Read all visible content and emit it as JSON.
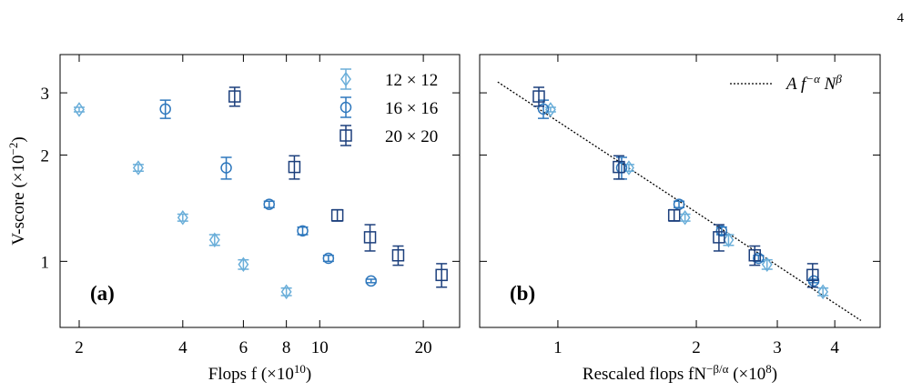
{
  "page_number": "4",
  "chart_data": [
    {
      "type": "scatter",
      "panel_label": "(a)",
      "xlabel": [
        "Flops f (×10",
        "10",
        ")"
      ],
      "ylabel": [
        "V-score (×10",
        "−2",
        ")"
      ],
      "log_x": true,
      "log_y": true,
      "xlim": [
        1.76,
        25.5
      ],
      "ylim": [
        0.65,
        3.85
      ],
      "xticks": [
        2,
        4,
        6,
        8,
        10,
        20
      ],
      "yticks": [
        1,
        2,
        3
      ],
      "legend": "upper right",
      "series": [
        {
          "name": "12 × 12",
          "color": "#6aaed9",
          "marker": "diamond",
          "x": [
            2,
            2.97,
            4,
            4.95,
            6,
            8
          ],
          "values": [
            2.69,
            1.84,
            1.33,
            1.15,
            0.98,
            0.82
          ],
          "errors": [
            0.04,
            0.04,
            0.03,
            0.04,
            0.03,
            0.02
          ]
        },
        {
          "name": "16 × 16",
          "color": "#2f78bd",
          "marker": "circle",
          "x": [
            3.56,
            5.35,
            7.13,
            8.92,
            10.6,
            14.1
          ],
          "values": [
            2.7,
            1.84,
            1.45,
            1.22,
            1.02,
            0.88
          ],
          "errors": [
            0.16,
            0.13,
            0.03,
            0.03,
            0.02,
            0.01
          ]
        },
        {
          "name": "20 × 20",
          "color": "#1c3f7c",
          "marker": "square",
          "x": [
            5.66,
            8.44,
            11.25,
            14,
            16.9,
            22.6
          ],
          "values": [
            2.93,
            1.85,
            1.35,
            1.17,
            1.04,
            0.915
          ],
          "errors": [
            0.18,
            0.14,
            0.05,
            0.1,
            0.065,
            0.07
          ]
        }
      ]
    },
    {
      "type": "scatter",
      "panel_label": "(b)",
      "xlabel": [
        "Rescaled flops fN",
        "−β/α",
        " (×10",
        "8",
        ")"
      ],
      "log_x": true,
      "log_y": true,
      "xlim": [
        0.676,
        5.02
      ],
      "ylim": [
        0.65,
        3.85
      ],
      "xticks": [
        1,
        2,
        3,
        4
      ],
      "yticks": [
        1,
        2,
        3
      ],
      "legend": "upper right",
      "fit": {
        "name": [
          "A f",
          "−α",
          " N",
          "β"
        ],
        "color": "#000000",
        "x": [
          0.74,
          4.56
        ],
        "values": [
          3.22,
          0.68
        ]
      },
      "series": [
        {
          "color": "#6aaed9",
          "marker": "diamond",
          "x": [
            0.964,
            1.427,
            1.89,
            2.35,
            2.85,
            3.77
          ],
          "values": [
            2.69,
            1.84,
            1.33,
            1.15,
            0.98,
            0.82
          ],
          "errors": [
            0.04,
            0.04,
            0.03,
            0.04,
            0.03,
            0.02
          ]
        },
        {
          "color": "#2f78bd",
          "marker": "circle",
          "x": [
            0.93,
            1.376,
            1.834,
            2.27,
            2.73,
            3.6
          ],
          "values": [
            2.7,
            1.84,
            1.45,
            1.22,
            1.02,
            0.88
          ],
          "errors": [
            0.16,
            0.13,
            0.03,
            0.03,
            0.02,
            0.01
          ]
        },
        {
          "color": "#1c3f7c",
          "marker": "square",
          "x": [
            0.909,
            1.357,
            1.79,
            2.24,
            2.68,
            3.58
          ],
          "values": [
            2.93,
            1.85,
            1.35,
            1.17,
            1.04,
            0.915
          ],
          "errors": [
            0.18,
            0.14,
            0.05,
            0.1,
            0.065,
            0.07
          ]
        }
      ]
    }
  ]
}
